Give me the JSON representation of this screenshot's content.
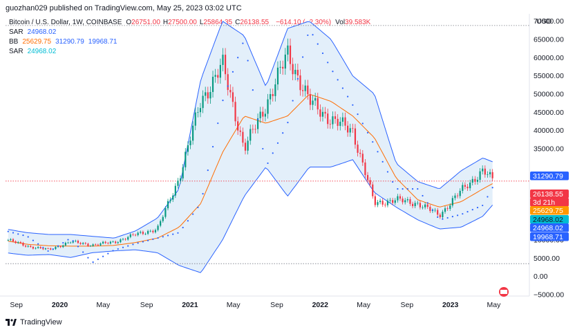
{
  "header": {
    "publish_line": "guozhan029 published on TradingView.com, May 25, 2023 03:02 UTC"
  },
  "legend": {
    "symbol": "Bitcoin / U.S. Dollar, 1W, COINBASE",
    "ohlc": [
      {
        "label": "O",
        "value": "26751.00"
      },
      {
        "label": "H",
        "value": "27500.00"
      },
      {
        "label": "L",
        "value": "25864.35"
      },
      {
        "label": "C",
        "value": "26138.55"
      }
    ],
    "change": "−614.10 (−2.30%)",
    "volume_label": "Vol",
    "volume": "39.583K",
    "indicators": [
      {
        "name": "SAR",
        "values": [
          "24968.02"
        ],
        "colors": [
          "#2962ff"
        ]
      },
      {
        "name": "BB",
        "values": [
          "25629.75",
          "31290.79",
          "19968.71"
        ],
        "colors": [
          "#ff6d00",
          "#2962ff",
          "#2962ff"
        ]
      },
      {
        "name": "SAR",
        "values": [
          "24968.02"
        ],
        "colors": [
          "#00bcd4"
        ]
      }
    ]
  },
  "axis": {
    "currency": "USD",
    "y_ticks": [
      "70000.00",
      "65000.00",
      "60000.00",
      "55000.00",
      "50000.00",
      "45000.00",
      "40000.00",
      "35000.00",
      "15000.00",
      "10000.00",
      "5000.00",
      "0.00",
      "−5000.00"
    ],
    "x_labels": [
      "Sep",
      "2020",
      "May",
      "Sep",
      "2021",
      "May",
      "Sep",
      "2022",
      "May",
      "Sep",
      "2023",
      "May"
    ]
  },
  "price_badges": [
    {
      "label": "31290.79",
      "bg": "#2962ff",
      "fg": "#ffffff"
    },
    {
      "label": "26138.55",
      "bg": "#f23645",
      "fg": "#ffffff"
    },
    {
      "label": "3d 21h",
      "bg": "#f23645",
      "fg": "#ffffff"
    },
    {
      "label": "25629.75",
      "bg": "#ff9800",
      "fg": "#ffffff"
    },
    {
      "label": "24968.02",
      "bg": "#00bcd4",
      "fg": "#131722"
    },
    {
      "label": "24968.02",
      "bg": "#2962ff",
      "fg": "#ffffff"
    },
    {
      "label": "19968.71",
      "bg": "#2962ff",
      "fg": "#ffffff"
    }
  ],
  "footer": {
    "brand": "TradingView"
  },
  "colors": {
    "up": "#089981",
    "down": "#f23645",
    "bb_line": "#2962ff",
    "bb_fill": "#e3effa",
    "basis": "#ff6d00",
    "sar": "#2962ff",
    "dotted": "#787b86"
  },
  "chart_data": {
    "type": "candlestick",
    "interval": "1W",
    "x_range": [
      "2019-08",
      "2023-06"
    ],
    "ylim": [
      -5000,
      72000
    ],
    "x": [
      "2019-08",
      "2019-10",
      "2019-12",
      "2020-02",
      "2020-04",
      "2020-06",
      "2020-08",
      "2020-10",
      "2020-12",
      "2021-02",
      "2021-04",
      "2021-06",
      "2021-08",
      "2021-10",
      "2021-12",
      "2022-02",
      "2022-04",
      "2022-06",
      "2022-08",
      "2022-10",
      "2022-12",
      "2023-02",
      "2023-04",
      "2023-05"
    ],
    "series": [
      {
        "name": "close",
        "values": [
          10200,
          8300,
          7300,
          9500,
          8600,
          9400,
          11500,
          13000,
          27000,
          48000,
          58000,
          35000,
          47000,
          61000,
          48000,
          43000,
          40000,
          20000,
          21000,
          20000,
          16800,
          23500,
          29000,
          26138.55
        ]
      },
      {
        "name": "BB upper",
        "values": [
          13000,
          12000,
          11500,
          11500,
          11000,
          10500,
          12500,
          16000,
          24000,
          54000,
          70000,
          66000,
          52000,
          68000,
          70000,
          65000,
          55000,
          50000,
          31000,
          26000,
          24000,
          29000,
          32500,
          31290.79
        ]
      },
      {
        "name": "BB basis",
        "values": [
          9800,
          8800,
          8400,
          8300,
          8300,
          8500,
          9300,
          10500,
          13500,
          20000,
          34000,
          44000,
          42000,
          44000,
          50000,
          48000,
          44000,
          38000,
          27000,
          21000,
          19000,
          20500,
          24000,
          25629.75
        ]
      },
      {
        "name": "BB lower",
        "values": [
          6500,
          5800,
          6000,
          5200,
          6500,
          7000,
          7300,
          6500,
          3000,
          1000,
          10000,
          22000,
          30000,
          22000,
          30000,
          30000,
          32000,
          23000,
          19000,
          15500,
          13000,
          13500,
          16500,
          19968.71
        ]
      },
      {
        "name": "SAR",
        "values": [
          12500,
          11000,
          6800,
          10500,
          3800,
          7200,
          9000,
          10500,
          12000,
          20000,
          48000,
          65000,
          30000,
          42000,
          68000,
          57000,
          47000,
          36000,
          24000,
          24000,
          15500,
          17000,
          19500,
          24968.02
        ]
      }
    ],
    "horizontal_lines": [
      68800,
      26138.55,
      3500
    ]
  }
}
